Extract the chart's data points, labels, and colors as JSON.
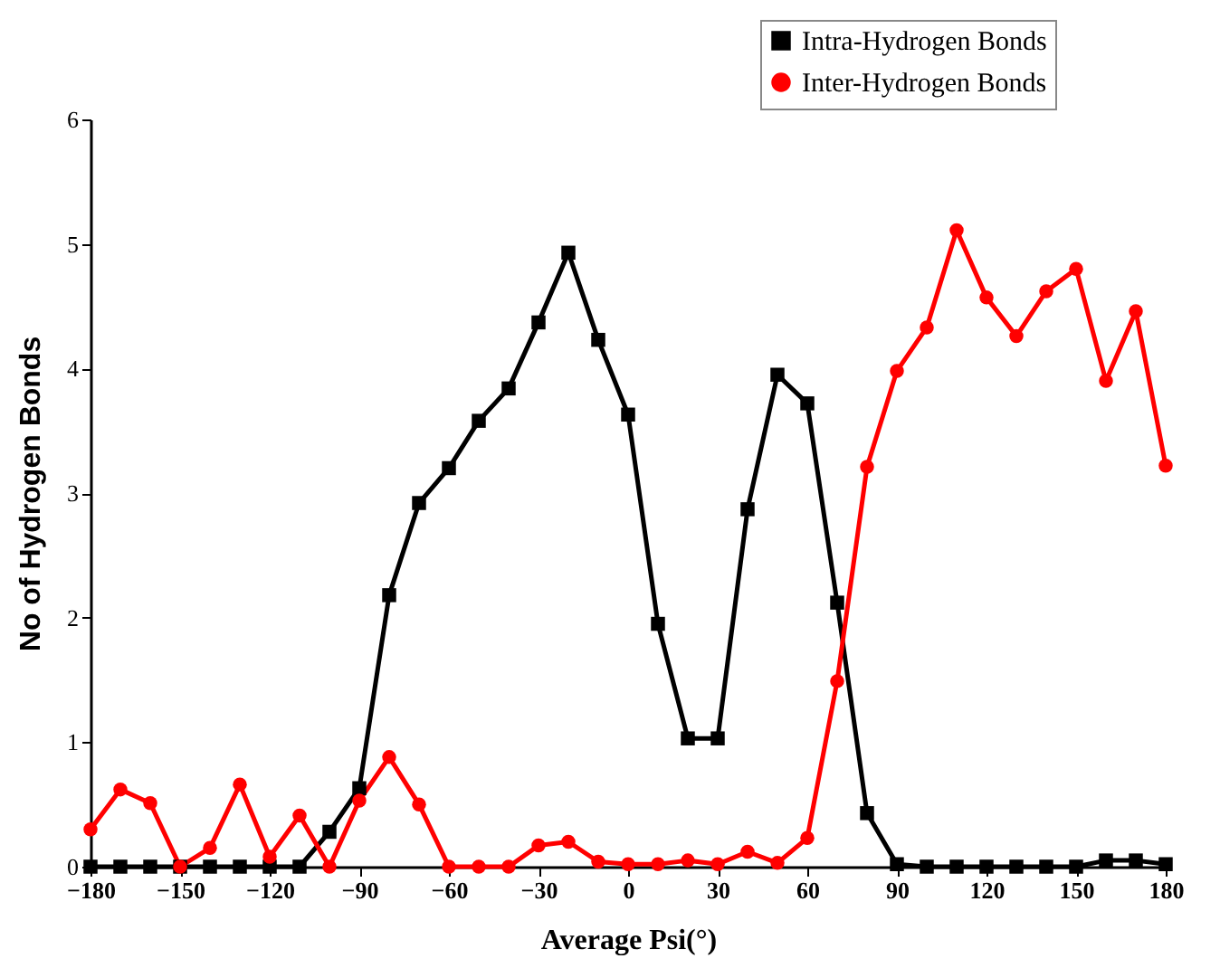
{
  "chart_data": {
    "type": "line",
    "xlabel": "Average Psi(°)",
    "ylabel": "No of Hydrogen Bonds",
    "x": [
      -180,
      -170,
      -160,
      -150,
      -140,
      -130,
      -120,
      -110,
      -100,
      -90,
      -80,
      -70,
      -60,
      -50,
      -40,
      -30,
      -20,
      -10,
      0,
      10,
      20,
      30,
      40,
      50,
      60,
      70,
      80,
      90,
      100,
      110,
      120,
      130,
      140,
      150,
      160,
      170,
      180
    ],
    "series": [
      {
        "name": "Intra-Hydrogen Bonds",
        "color": "#000000",
        "marker": "square",
        "values": [
          0,
          0,
          0,
          0,
          0,
          0,
          0,
          0,
          0.28,
          0.63,
          2.18,
          2.92,
          3.2,
          3.58,
          3.84,
          4.37,
          4.93,
          4.23,
          3.63,
          1.95,
          1.03,
          1.03,
          2.87,
          3.95,
          3.72,
          2.12,
          0.43,
          0.02,
          0,
          0,
          0,
          0,
          0,
          0,
          0.05,
          0.05,
          0.02
        ]
      },
      {
        "name": "Inter-Hydrogen Bonds",
        "color": "#ff0000",
        "marker": "circle",
        "values": [
          0.3,
          0.62,
          0.51,
          0,
          0.15,
          0.66,
          0.08,
          0.41,
          0,
          0.53,
          0.88,
          0.5,
          0,
          0,
          0,
          0.17,
          0.2,
          0.04,
          0.02,
          0.02,
          0.05,
          0.02,
          0.12,
          0.03,
          0.23,
          1.49,
          3.21,
          3.98,
          4.33,
          5.11,
          4.57,
          4.26,
          4.62,
          4.8,
          3.9,
          4.46,
          3.22
        ]
      }
    ],
    "xlim": [
      -180,
      180
    ],
    "xticks": [
      -180,
      -150,
      -120,
      -90,
      -60,
      -30,
      0,
      30,
      60,
      90,
      120,
      150,
      180
    ],
    "ylim": [
      0,
      6
    ],
    "yticks": [
      0,
      1,
      2,
      3,
      4,
      5,
      6
    ],
    "grid": false,
    "legend": "top right",
    "line_style": "solid"
  }
}
